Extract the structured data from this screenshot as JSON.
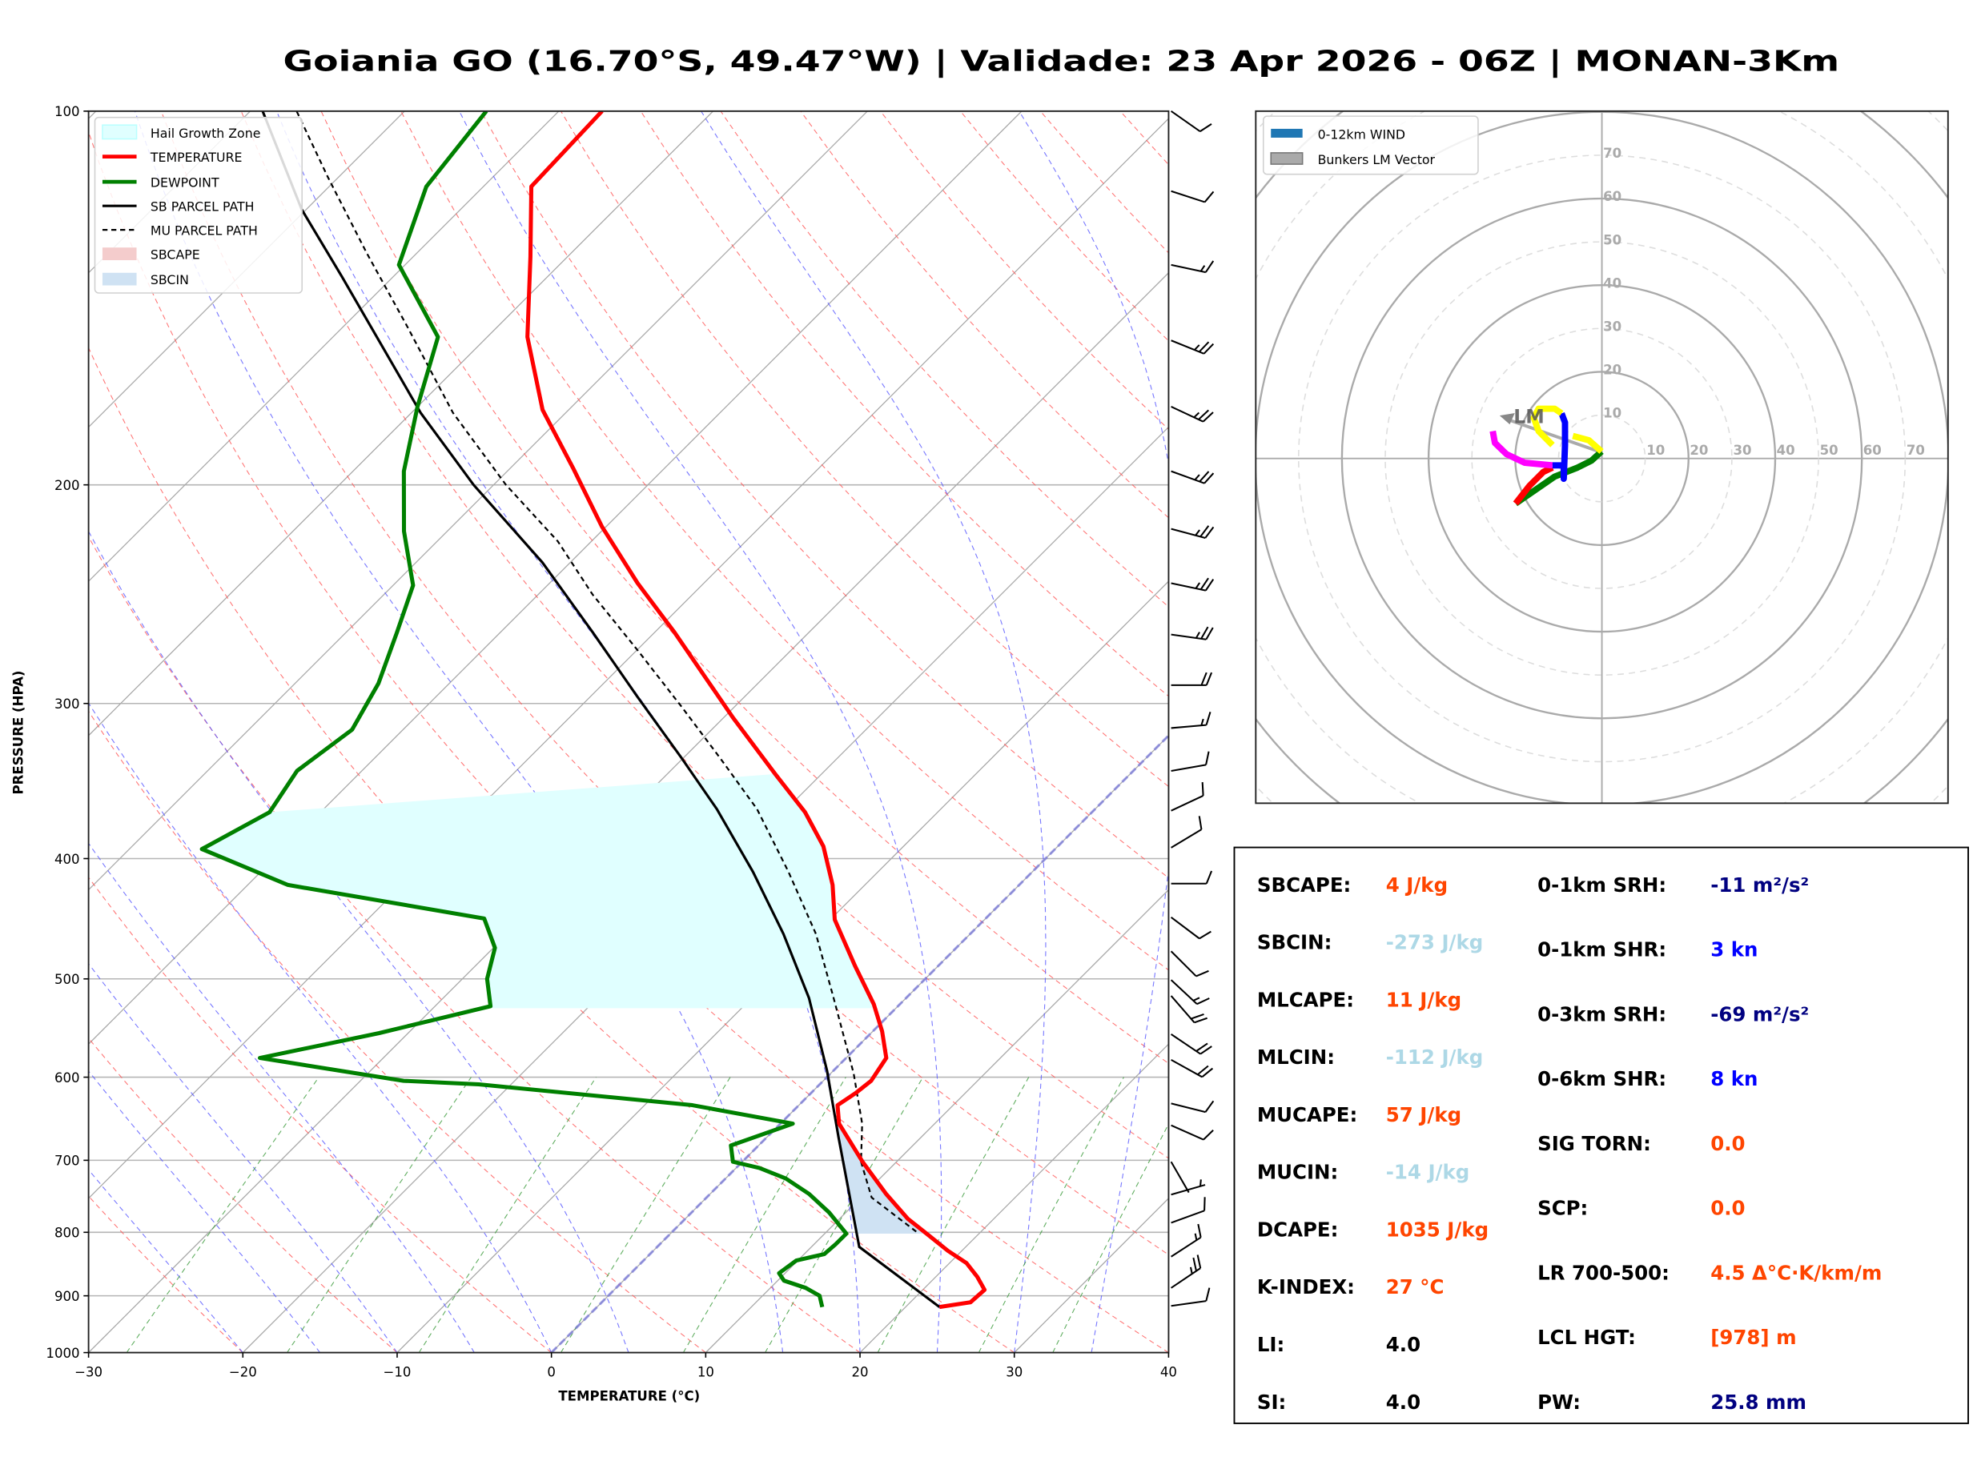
{
  "title": "Goiania GO (16.70°S, 49.47°W) | Validade: 23 Apr 2026 - 06Z | MONAN-3Km",
  "chart_data": [
    {
      "type": "line",
      "chart": "skew-t log-p",
      "xlabel": "TEMPERATURE (°C)",
      "ylabel": "PRESSURE (HPA)",
      "xlim": [
        -30,
        40
      ],
      "ylim": [
        1000,
        100
      ],
      "y_scale": "log",
      "xticks": [
        "−30",
        "−20",
        "−10",
        "0",
        "10",
        "20",
        "30",
        "40"
      ],
      "yticks": [
        "100",
        "200",
        "300",
        "400",
        "500",
        "600",
        "700",
        "800",
        "900",
        "1000"
      ],
      "legend_position": "top-left",
      "legend": [
        {
          "label": "Hail Growth Zone",
          "color": "#e0ffff"
        },
        {
          "label": "TEMPERATURE",
          "color": "#ff0000"
        },
        {
          "label": "DEWPOINT",
          "color": "#008000"
        },
        {
          "label": "SB PARCEL PATH",
          "color": "#000000"
        },
        {
          "label": "MU PARCEL PATH",
          "color": "#000000"
        },
        {
          "label": "SBCAPE",
          "color": "#f4cccc"
        },
        {
          "label": "SBCIN",
          "color": "#cfe2f3"
        }
      ],
      "temperature": {
        "pressure": [
          919,
          911,
          890,
          869,
          847,
          828,
          802,
          780,
          745,
          702,
          654,
          632,
          618,
          604,
          579,
          551,
          524,
          488,
          448,
          420,
          391,
          367,
          342,
          308,
          263,
          240,
          216,
          194,
          174,
          152,
          131,
          115,
          100
        ],
        "temp_c": [
          22.2,
          23.9,
          24.0,
          22.7,
          21.1,
          19.1,
          16.6,
          14.4,
          11.4,
          7.8,
          3.8,
          2.5,
          2.9,
          3.1,
          2.6,
          0.6,
          -1.7,
          -5.4,
          -9.7,
          -12.1,
          -15.2,
          -18.6,
          -23.0,
          -29.4,
          -38.7,
          -44.3,
          -50.3,
          -55.9,
          -61.7,
          -67.4,
          -72.4,
          -76.9,
          -77.2
        ]
      },
      "dewpoint": {
        "pressure": [
          919,
          900,
          887,
          875,
          863,
          843,
          833,
          818,
          802,
          771,
          745,
          724,
          710,
          702,
          681,
          654,
          632,
          608,
          604,
          579,
          553,
          526,
          500,
          472,
          447,
          420,
          393,
          367,
          340,
          315,
          289,
          263,
          241,
          218,
          195,
          173,
          152,
          133,
          115,
          100
        ],
        "temp_c": [
          14.6,
          13.7,
          12.3,
          10.4,
          9.6,
          9.9,
          11.3,
          11.4,
          11.4,
          8.9,
          6.4,
          3.9,
          1.5,
          -0.6,
          -1.8,
          0.8,
          -6.9,
          -22.1,
          -27.2,
          -38.0,
          -31.9,
          -26.4,
          -28.4,
          -29.9,
          -32.5,
          -47.4,
          -55.3,
          -53.3,
          -54.2,
          -53.3,
          -54.6,
          -56.7,
          -58.7,
          -62.8,
          -66.7,
          -70.0,
          -73.2,
          -80.4,
          -83.7,
          -84.7
        ]
      },
      "sb_parcel": {
        "pressure": [
          919,
          822,
          670,
          593,
          518,
          460,
          410,
          365,
          332,
          296,
          263,
          231,
          200,
          175,
          153,
          136,
          120,
          100
        ],
        "temp_c": [
          22.2,
          13.1,
          4.6,
          -0.4,
          -6.3,
          -12.1,
          -18.1,
          -24.5,
          -30.1,
          -37.0,
          -44.0,
          -51.8,
          -61.3,
          -69.4,
          -76.8,
          -83.3,
          -90.3,
          -99.2
        ]
      },
      "mu_parcel": {
        "pressure": [
          799,
          750,
          702,
          654,
          596,
          518,
          460,
          410,
          365,
          332,
          302,
          272,
          245,
          222,
          200,
          175,
          149,
          130,
          113,
          100
        ],
        "temp_c": [
          15.8,
          10.7,
          7.7,
          5.3,
          1.5,
          -4.7,
          -10.0,
          -15.8,
          -21.9,
          -27.6,
          -33.4,
          -39.9,
          -46.5,
          -52.2,
          -59.2,
          -67.3,
          -75.9,
          -83.3,
          -90.7,
          -97.0
        ]
      },
      "hail_growth_zone_hpa": [
        528,
        342
      ],
      "sbcin_layer_hpa": [
        802,
        654
      ],
      "wind_barbs": [
        {
          "p": 100,
          "dir": 125,
          "spd": 10
        },
        {
          "p": 116,
          "dir": 108,
          "spd": 10
        },
        {
          "p": 133,
          "dir": 102,
          "spd": 15
        },
        {
          "p": 153,
          "dir": 112,
          "spd": 25
        },
        {
          "p": 173,
          "dir": 115,
          "spd": 25
        },
        {
          "p": 195,
          "dir": 110,
          "spd": 25
        },
        {
          "p": 217,
          "dir": 105,
          "spd": 25
        },
        {
          "p": 240,
          "dir": 102,
          "spd": 25
        },
        {
          "p": 264,
          "dir": 98,
          "spd": 25
        },
        {
          "p": 290,
          "dir": 90,
          "spd": 20
        },
        {
          "p": 314,
          "dir": 85,
          "spd": 15
        },
        {
          "p": 340,
          "dir": 80,
          "spd": 10
        },
        {
          "p": 366,
          "dir": 65,
          "spd": 10
        },
        {
          "p": 392,
          "dir": 59,
          "spd": 10
        },
        {
          "p": 419,
          "dir": 90,
          "spd": 10
        },
        {
          "p": 446,
          "dir": 127,
          "spd": 10
        },
        {
          "p": 475,
          "dir": 135,
          "spd": 10
        },
        {
          "p": 501,
          "dir": 133,
          "spd": 15
        },
        {
          "p": 516,
          "dir": 139,
          "spd": 20
        },
        {
          "p": 554,
          "dir": 124,
          "spd": 20
        },
        {
          "p": 581,
          "dir": 119,
          "spd": 20
        },
        {
          "p": 630,
          "dir": 104,
          "spd": 10
        },
        {
          "p": 656,
          "dir": 114,
          "spd": 10
        },
        {
          "p": 702,
          "dir": 150,
          "spd": 2
        },
        {
          "p": 746,
          "dir": 74,
          "spd": 5
        },
        {
          "p": 786,
          "dir": 70,
          "spd": 10
        },
        {
          "p": 837,
          "dir": 57,
          "spd": 15
        },
        {
          "p": 887,
          "dir": 56,
          "spd": 25
        },
        {
          "p": 917,
          "dir": 82,
          "spd": 10
        }
      ]
    },
    {
      "type": "line",
      "chart": "hodograph",
      "units": "kn",
      "legend_position": "top-left",
      "legend": [
        {
          "label": "0-12km WIND",
          "color": "#1f77b4"
        },
        {
          "label": "Bunkers LM Vector",
          "color": "#aaaaaa"
        }
      ],
      "ring_labels": [
        "10",
        "20",
        "30",
        "40",
        "50",
        "60",
        "70"
      ],
      "segments": [
        {
          "color": "#008000",
          "u": [
            -0.1,
            -2.4,
            -5.6,
            -10.9,
            -19.9
          ],
          "v": [
            1.6,
            -0.5,
            -2.1,
            -4.2,
            -10.4
          ]
        },
        {
          "color": "#ff0000",
          "u": [
            -19.9,
            -16.7,
            -13.5,
            -11.4
          ],
          "v": [
            -10.4,
            -6.3,
            -3.1,
            -2.1
          ]
        },
        {
          "color": "#ff00ff",
          "u": [
            -11.4,
            -17.8,
            -22.0,
            -24.7,
            -25.2
          ],
          "v": [
            -1.6,
            -1.0,
            1.0,
            3.6,
            6.3
          ]
        },
        {
          "color": "#0000ff",
          "u": [
            -11.4,
            -8.8,
            -8.8,
            -8.5,
            -8.5,
            -9.3
          ],
          "v": [
            -1.6,
            -1.6,
            -4.7,
            3.1,
            8.3,
            10.4
          ]
        },
        {
          "color": "#ffff00",
          "u": [
            -9.3,
            -10.9,
            -14.6,
            -15.7,
            -14.6,
            -11.4
          ],
          "v": [
            10.4,
            11.5,
            11.5,
            9.4,
            6.3,
            3.1
          ]
        },
        {
          "color": "#ffff00",
          "u": [
            -6.7,
            -3.0,
            -0.1
          ],
          "v": [
            5.2,
            4.2,
            1.6
          ]
        }
      ],
      "bunkers_lm": {
        "label": "LM",
        "u": -23.6,
        "v": 9.9
      }
    }
  ],
  "indices": {
    "left": [
      {
        "label": "SBCAPE:",
        "value": "4 J/kg",
        "color": "#ff4500"
      },
      {
        "label": "SBCIN:",
        "value": "-273 J/kg",
        "color": "#add8e6"
      },
      {
        "label": "MLCAPE:",
        "value": "11 J/kg",
        "color": "#ff4500"
      },
      {
        "label": "MLCIN:",
        "value": "-112 J/kg",
        "color": "#add8e6"
      },
      {
        "label": "MUCAPE:",
        "value": "57 J/kg",
        "color": "#ff4500"
      },
      {
        "label": "MUCIN:",
        "value": "-14 J/kg",
        "color": "#add8e6"
      },
      {
        "label": "DCAPE:",
        "value": "1035 J/kg",
        "color": "#ff4500"
      },
      {
        "label": "K-INDEX:",
        "value": "27 °C",
        "color": "#ff4500"
      },
      {
        "label": "LI:",
        "value": "4.0",
        "color": "#000000"
      },
      {
        "label": "SI:",
        "value": "4.0",
        "color": "#000000"
      }
    ],
    "right": [
      {
        "label": "0-1km SRH:",
        "value": "-11 m²/s²",
        "color": "#000080"
      },
      {
        "label": "0-1km SHR:",
        "value": "3 kn",
        "color": "#0000ff"
      },
      {
        "label": "0-3km SRH:",
        "value": "-69 m²/s²",
        "color": "#000080"
      },
      {
        "label": "0-6km SHR:",
        "value": "8 kn",
        "color": "#0000ff"
      },
      {
        "label": "SIG TORN:",
        "value": "0.0",
        "color": "#ff4500"
      },
      {
        "label": "SCP:",
        "value": "0.0",
        "color": "#ff4500"
      },
      {
        "label": "LR 700-500:",
        "value": "4.5 Δ°C·K/km/m",
        "color": "#ff4500"
      },
      {
        "label": "LCL HGT:",
        "value": "[978] m",
        "color": "#ff4500"
      },
      {
        "label": "PW:",
        "value": "25.8 mm",
        "color": "#000080"
      }
    ]
  }
}
